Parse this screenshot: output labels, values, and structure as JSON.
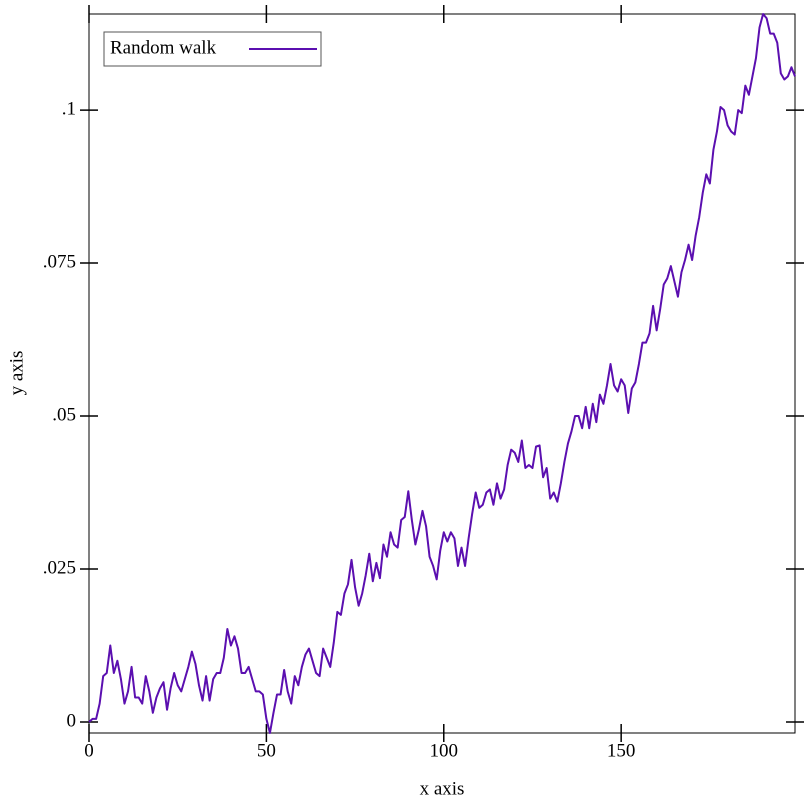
{
  "chart_data": {
    "type": "line",
    "xlabel": "x axis",
    "ylabel": "y axis",
    "x": [
      0,
      1,
      2,
      3,
      4,
      5,
      6,
      7,
      8,
      9,
      10,
      11,
      12,
      13,
      14,
      15,
      16,
      17,
      18,
      19,
      20,
      21,
      22,
      23,
      24,
      25,
      26,
      27,
      28,
      29,
      30,
      31,
      32,
      33,
      34,
      35,
      36,
      37,
      38,
      39,
      40,
      41,
      42,
      43,
      44,
      45,
      46,
      47,
      48,
      49,
      50,
      51,
      52,
      53,
      54,
      55,
      56,
      57,
      58,
      59,
      60,
      61,
      62,
      63,
      64,
      65,
      66,
      67,
      68,
      69,
      70,
      71,
      72,
      73,
      74,
      75,
      76,
      77,
      78,
      79,
      80,
      81,
      82,
      83,
      84,
      85,
      86,
      87,
      88,
      89,
      90,
      91,
      92,
      93,
      94,
      95,
      96,
      97,
      98,
      99,
      100,
      101,
      102,
      103,
      104,
      105,
      106,
      107,
      108,
      109,
      110,
      111,
      112,
      113,
      114,
      115,
      116,
      117,
      118,
      119,
      120,
      121,
      122,
      123,
      124,
      125,
      126,
      127,
      128,
      129,
      130,
      131,
      132,
      133,
      134,
      135,
      136,
      137,
      138,
      139,
      140,
      141,
      142,
      143,
      144,
      145,
      146,
      147,
      148,
      149,
      150,
      151,
      152,
      153,
      154,
      155,
      156,
      157,
      158,
      159,
      160,
      161,
      162,
      163,
      164,
      165,
      166,
      167,
      168,
      169,
      170,
      171,
      172,
      173,
      174,
      175,
      176,
      177,
      178,
      179,
      180,
      181,
      182,
      183,
      184,
      185,
      186,
      187,
      188,
      189,
      190,
      191,
      192,
      193,
      194,
      195,
      196,
      197,
      198,
      199
    ],
    "series": [
      {
        "name": "Random walk",
        "color": "#5b0fb0",
        "values": [
          0.0,
          0.0005,
          0.0005,
          0.003,
          0.0075,
          0.008,
          0.0125,
          0.008,
          0.01,
          0.007,
          0.003,
          0.005,
          0.009,
          0.004,
          0.004,
          0.003,
          0.0075,
          0.005,
          0.0015,
          0.004,
          0.0055,
          0.0065,
          0.002,
          0.0055,
          0.008,
          0.006,
          0.005,
          0.007,
          0.009,
          0.0115,
          0.0095,
          0.006,
          0.0035,
          0.0075,
          0.0035,
          0.007,
          0.008,
          0.008,
          0.0105,
          0.0152,
          0.0125,
          0.014,
          0.012,
          0.008,
          0.008,
          0.009,
          0.007,
          0.005,
          0.005,
          0.0045,
          0.0005,
          -0.0018,
          0.0015,
          0.0045,
          0.0045,
          0.0085,
          0.005,
          0.003,
          0.0075,
          0.006,
          0.009,
          0.011,
          0.012,
          0.01,
          0.008,
          0.0075,
          0.012,
          0.0105,
          0.009,
          0.013,
          0.018,
          0.0175,
          0.021,
          0.0225,
          0.0265,
          0.022,
          0.019,
          0.021,
          0.024,
          0.0275,
          0.023,
          0.026,
          0.0235,
          0.029,
          0.027,
          0.031,
          0.029,
          0.0285,
          0.033,
          0.0335,
          0.0377,
          0.033,
          0.029,
          0.0315,
          0.0345,
          0.032,
          0.027,
          0.0255,
          0.0233,
          0.028,
          0.031,
          0.0295,
          0.031,
          0.03,
          0.0255,
          0.0285,
          0.0255,
          0.03,
          0.034,
          0.0375,
          0.035,
          0.0355,
          0.0375,
          0.038,
          0.0355,
          0.039,
          0.0365,
          0.038,
          0.042,
          0.0445,
          0.044,
          0.0425,
          0.046,
          0.0415,
          0.042,
          0.0415,
          0.045,
          0.0452,
          0.04,
          0.0415,
          0.0365,
          0.0375,
          0.036,
          0.039,
          0.0425,
          0.0455,
          0.0475,
          0.05,
          0.05,
          0.048,
          0.0515,
          0.048,
          0.052,
          0.049,
          0.0535,
          0.052,
          0.055,
          0.0585,
          0.055,
          0.054,
          0.056,
          0.055,
          0.0505,
          0.0545,
          0.0555,
          0.0585,
          0.062,
          0.062,
          0.0635,
          0.068,
          0.064,
          0.0675,
          0.0715,
          0.0725,
          0.0745,
          0.072,
          0.0695,
          0.0735,
          0.0755,
          0.078,
          0.0755,
          0.0795,
          0.0825,
          0.0865,
          0.0895,
          0.088,
          0.0935,
          0.0965,
          0.1005,
          0.1,
          0.0975,
          0.0965,
          0.096,
          0.1,
          0.0995,
          0.104,
          0.1025,
          0.1055,
          0.1085,
          0.1135,
          0.1157,
          0.115,
          0.1125,
          0.1125,
          0.111,
          0.106,
          0.105,
          0.1055,
          0.107,
          0.1055
        ]
      }
    ],
    "xlim": [
      0,
      199
    ],
    "ylim": [
      -0.0018,
      0.1157
    ],
    "xticks": [
      0,
      50,
      100,
      150
    ],
    "yticks": [
      0,
      {
        "value": 0.025,
        "label": ".025"
      },
      {
        "value": 0.05,
        "label": ".05"
      },
      {
        "value": 0.075,
        "label": ".075"
      },
      {
        "value": 0.1,
        "label": ".1"
      }
    ],
    "legend": "top-left"
  }
}
